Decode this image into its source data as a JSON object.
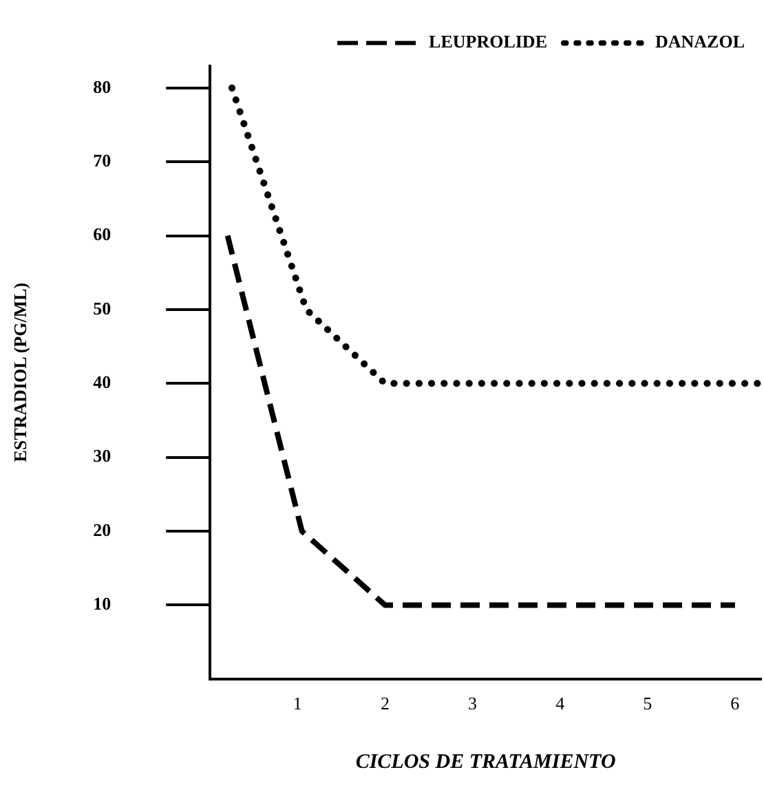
{
  "chart_data": {
    "type": "line",
    "xlabel": "CICLOS DE TRATAMIENTO",
    "ylabel": "ESTRADIOL (PG/ML)",
    "xlim": [
      0,
      6.3
    ],
    "xticks": [
      1,
      2,
      3,
      4,
      5,
      6
    ],
    "ylim": [
      0,
      83
    ],
    "yticks": [
      10,
      20,
      30,
      40,
      50,
      60,
      70,
      80
    ],
    "grid": false,
    "legend": "top right",
    "marker": "none",
    "series": [
      {
        "name": "LEUPROLIDE",
        "color": "#000000",
        "line_style": "dashed",
        "x": [
          0.2,
          1.05,
          2,
          6
        ],
        "values": [
          60,
          20,
          10,
          10
        ]
      },
      {
        "name": "DANAZOL",
        "color": "#000000",
        "line_style": "dotted",
        "x": [
          0.25,
          1.1,
          2,
          6.3
        ],
        "values": [
          80,
          50,
          40,
          40
        ]
      }
    ]
  }
}
